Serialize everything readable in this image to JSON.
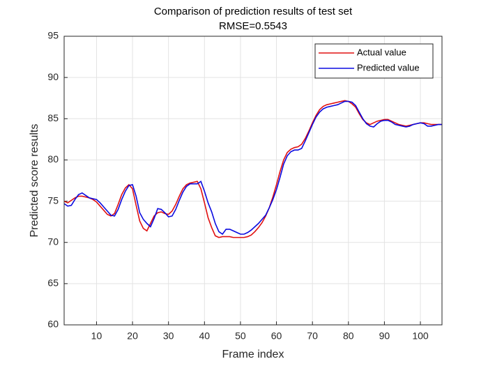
{
  "chart_data": {
    "type": "line",
    "title": "Comparison of prediction results of test set",
    "subtitle": "RMSE=0.5543",
    "x_label": "Frame index",
    "y_label": "Predicted score results",
    "x": [
      1,
      2,
      3,
      4,
      5,
      6,
      7,
      8,
      9,
      10,
      11,
      12,
      13,
      14,
      15,
      16,
      17,
      18,
      19,
      20,
      21,
      22,
      23,
      24,
      25,
      26,
      27,
      28,
      29,
      30,
      31,
      32,
      33,
      34,
      35,
      36,
      37,
      38,
      39,
      40,
      41,
      42,
      43,
      44,
      45,
      46,
      47,
      48,
      49,
      50,
      51,
      52,
      53,
      54,
      55,
      56,
      57,
      58,
      59,
      60,
      61,
      62,
      63,
      64,
      65,
      66,
      67,
      68,
      69,
      70,
      71,
      72,
      73,
      74,
      75,
      76,
      77,
      78,
      79,
      80,
      81,
      82,
      83,
      84,
      85,
      86,
      87,
      88,
      89,
      90,
      91,
      92,
      93,
      94,
      95,
      96,
      97,
      98,
      99,
      100,
      101,
      102,
      103,
      104,
      105,
      106
    ],
    "series": [
      {
        "name": "Actual value",
        "color": "#e01010",
        "values": [
          75.0,
          74.8,
          75.1,
          75.4,
          75.6,
          75.6,
          75.5,
          75.4,
          75.2,
          74.9,
          74.4,
          73.9,
          73.4,
          73.2,
          73.5,
          74.6,
          75.8,
          76.6,
          77.0,
          76.5,
          74.5,
          72.6,
          71.7,
          71.4,
          72.3,
          73.2,
          73.6,
          73.7,
          73.5,
          73.4,
          73.8,
          74.6,
          75.6,
          76.5,
          77.0,
          77.2,
          77.3,
          77.4,
          76.5,
          74.8,
          73.0,
          71.8,
          70.8,
          70.6,
          70.7,
          70.7,
          70.7,
          70.6,
          70.6,
          70.6,
          70.6,
          70.7,
          70.9,
          71.3,
          71.8,
          72.4,
          73.2,
          74.2,
          75.5,
          77.0,
          78.6,
          80.0,
          80.9,
          81.3,
          81.5,
          81.6,
          81.9,
          82.6,
          83.5,
          84.5,
          85.4,
          86.1,
          86.5,
          86.7,
          86.8,
          86.9,
          87.0,
          87.1,
          87.2,
          87.1,
          86.8,
          86.4,
          85.6,
          84.9,
          84.5,
          84.3,
          84.5,
          84.7,
          84.8,
          84.9,
          84.9,
          84.7,
          84.5,
          84.3,
          84.2,
          84.1,
          84.2,
          84.3,
          84.4,
          84.5,
          84.5,
          84.4,
          84.3,
          84.3,
          84.3,
          84.3
        ]
      },
      {
        "name": "Predicted value",
        "color": "#0a0ae0",
        "values": [
          74.7,
          74.4,
          74.5,
          75.2,
          75.8,
          76.0,
          75.7,
          75.4,
          75.3,
          75.2,
          74.8,
          74.3,
          73.8,
          73.3,
          73.2,
          74.0,
          75.2,
          76.2,
          76.9,
          77.0,
          75.6,
          73.6,
          72.8,
          72.3,
          71.9,
          72.9,
          74.1,
          74.0,
          73.6,
          73.1,
          73.2,
          74.0,
          75.1,
          76.1,
          76.8,
          77.1,
          77.1,
          77.1,
          77.4,
          76.2,
          74.8,
          73.7,
          72.3,
          71.3,
          71.0,
          71.6,
          71.6,
          71.4,
          71.2,
          71.0,
          71.0,
          71.2,
          71.5,
          71.9,
          72.3,
          72.8,
          73.3,
          74.2,
          75.2,
          76.4,
          77.9,
          79.5,
          80.5,
          81.0,
          81.2,
          81.2,
          81.4,
          82.3,
          83.3,
          84.3,
          85.2,
          85.8,
          86.2,
          86.4,
          86.5,
          86.6,
          86.7,
          86.9,
          87.1,
          87.1,
          87.0,
          86.6,
          85.8,
          85.0,
          84.4,
          84.1,
          84.0,
          84.4,
          84.7,
          84.8,
          84.8,
          84.6,
          84.3,
          84.2,
          84.1,
          84.0,
          84.1,
          84.3,
          84.4,
          84.5,
          84.4,
          84.1,
          84.1,
          84.2,
          84.3,
          84.3
        ]
      }
    ],
    "xlim": [
      1,
      106
    ],
    "ylim": [
      60,
      95
    ],
    "xticks": [
      10,
      20,
      30,
      40,
      50,
      60,
      70,
      80,
      90,
      100
    ],
    "yticks": [
      60,
      65,
      70,
      75,
      80,
      85,
      90,
      95
    ],
    "grid": true,
    "legend": "northeast"
  }
}
